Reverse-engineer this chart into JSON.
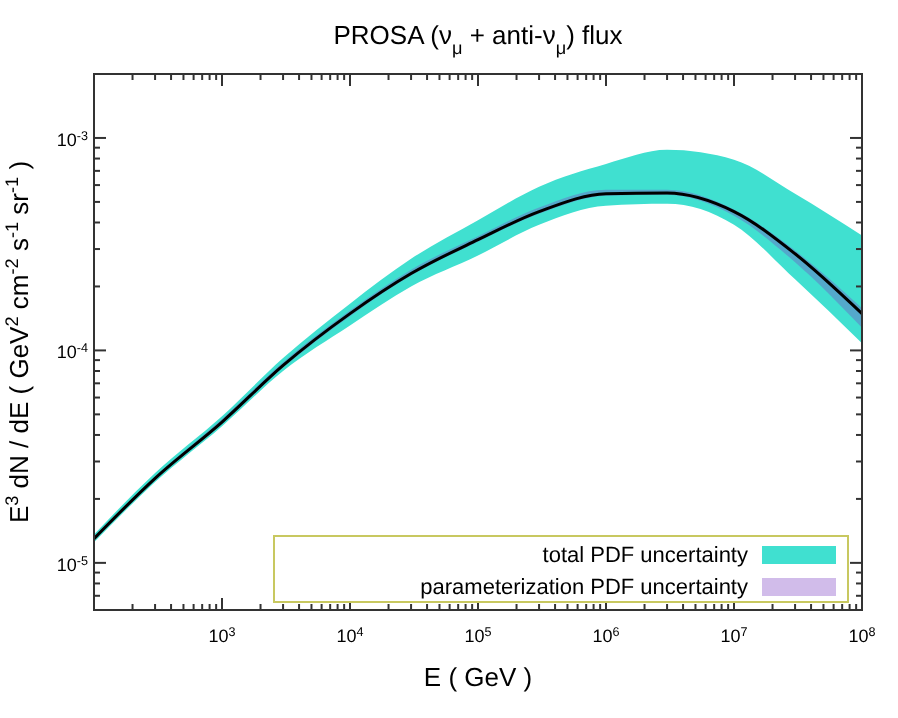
{
  "chart_data": {
    "type": "line",
    "title": "PROSA   (ν$_{μ}$ + anti-ν$_{μ}$)  flux",
    "xlabel": "E   ( GeV )",
    "ylabel": "E$^{3}$  dN / dE   ( GeV$^{2}$ cm$^{-2}$ s$^{-1}$ sr$^{-1}$ )",
    "log": "xy",
    "grid": false,
    "legend": "bottom right",
    "x": [
      100,
      300,
      1000,
      3000,
      10000,
      30000,
      100000,
      300000,
      1000000,
      3000000,
      10000000,
      30000000,
      100000000
    ],
    "xlim": [
      100,
      100000000
    ],
    "xticks": [
      {
        "value": 1000,
        "label": "10$^{3}$"
      },
      {
        "value": 10000,
        "label": "10$^{4}$"
      },
      {
        "value": 100000,
        "label": "10$^{5}$"
      },
      {
        "value": 1000000,
        "label": "10$^{6}$"
      },
      {
        "value": 10000000,
        "label": "10$^{7}$"
      },
      {
        "value": 100000000,
        "label": "10$^{8}$"
      },
      {
        "value": 200,
        "label": null
      },
      {
        "value": 300,
        "label": null
      },
      {
        "value": 400,
        "label": null
      },
      {
        "value": 500,
        "label": null
      },
      {
        "value": 600,
        "label": null
      },
      {
        "value": 700,
        "label": null
      },
      {
        "value": 800,
        "label": null
      },
      {
        "value": 900,
        "label": null
      },
      {
        "value": 2000,
        "label": null
      },
      {
        "value": 3000,
        "label": null
      },
      {
        "value": 4000,
        "label": null
      },
      {
        "value": 5000,
        "label": null
      },
      {
        "value": 6000,
        "label": null
      },
      {
        "value": 7000,
        "label": null
      },
      {
        "value": 8000,
        "label": null
      },
      {
        "value": 9000,
        "label": null
      },
      {
        "value": 20000,
        "label": null
      },
      {
        "value": 30000,
        "label": null
      },
      {
        "value": 40000,
        "label": null
      },
      {
        "value": 50000,
        "label": null
      },
      {
        "value": 60000,
        "label": null
      },
      {
        "value": 70000,
        "label": null
      },
      {
        "value": 80000,
        "label": null
      },
      {
        "value": 90000,
        "label": null
      },
      {
        "value": 200000,
        "label": null
      },
      {
        "value": 300000,
        "label": null
      },
      {
        "value": 400000,
        "label": null
      },
      {
        "value": 500000,
        "label": null
      },
      {
        "value": 600000,
        "label": null
      },
      {
        "value": 700000,
        "label": null
      },
      {
        "value": 800000,
        "label": null
      },
      {
        "value": 900000,
        "label": null
      },
      {
        "value": 2000000,
        "label": null
      },
      {
        "value": 3000000,
        "label": null
      },
      {
        "value": 4000000,
        "label": null
      },
      {
        "value": 5000000,
        "label": null
      },
      {
        "value": 6000000,
        "label": null
      },
      {
        "value": 7000000,
        "label": null
      },
      {
        "value": 8000000,
        "label": null
      },
      {
        "value": 9000000,
        "label": null
      },
      {
        "value": 20000000,
        "label": null
      },
      {
        "value": 30000000,
        "label": null
      },
      {
        "value": 40000000,
        "label": null
      },
      {
        "value": 50000000,
        "label": null
      },
      {
        "value": 60000000,
        "label": null
      },
      {
        "value": 70000000,
        "label": null
      },
      {
        "value": 80000000,
        "label": null
      },
      {
        "value": 90000000,
        "label": null
      }
    ],
    "ylim": [
      6e-06,
      0.002
    ],
    "yticks": [
      {
        "value": 1e-05,
        "label": "10$^{-5}$"
      },
      {
        "value": 0.0001,
        "label": "10$^{-4}$"
      },
      {
        "value": 0.001,
        "label": "10$^{-3}$"
      },
      {
        "value": 7e-06,
        "label": null
      },
      {
        "value": 8e-06,
        "label": null
      },
      {
        "value": 9e-06,
        "label": null
      },
      {
        "value": 2e-05,
        "label": null
      },
      {
        "value": 3e-05,
        "label": null
      },
      {
        "value": 4e-05,
        "label": null
      },
      {
        "value": 5e-05,
        "label": null
      },
      {
        "value": 6e-05,
        "label": null
      },
      {
        "value": 7e-05,
        "label": null
      },
      {
        "value": 8e-05,
        "label": null
      },
      {
        "value": 9e-05,
        "label": null
      },
      {
        "value": 0.0002,
        "label": null
      },
      {
        "value": 0.0003,
        "label": null
      },
      {
        "value": 0.0004,
        "label": null
      },
      {
        "value": 0.0005,
        "label": null
      },
      {
        "value": 0.0006,
        "label": null
      },
      {
        "value": 0.0007,
        "label": null
      },
      {
        "value": 0.0008,
        "label": null
      },
      {
        "value": 0.0009,
        "label": null
      },
      {
        "value": 0.002,
        "label": null
      }
    ],
    "series": [
      {
        "name": "total PDF uncertainty",
        "color": "#40e0d0",
        "values": [
          null,
          null,
          null,
          null,
          null,
          null,
          null,
          null,
          null,
          null,
          null,
          null,
          null
        ],
        "upper": [
          1.36e-05,
          2.65e-05,
          4.9e-05,
          9.2e-05,
          0.000166,
          0.00027,
          0.00041,
          0.00059,
          0.000755,
          0.00088,
          0.00079,
          0.000546,
          0.000347
        ],
        "lower": [
          1.25e-05,
          2.4e-05,
          4.4e-05,
          8e-05,
          0.000131,
          0.0002,
          0.00028,
          0.00039,
          0.00048,
          0.00049,
          0.00039,
          0.000216,
          0.000108
        ]
      },
      {
        "name": "parameterization PDF uncertainty",
        "color": "#7b3fc4",
        "values": [
          null,
          null,
          null,
          null,
          null,
          null,
          null,
          null,
          null,
          null,
          null,
          null,
          null
        ],
        "upper": [
          1.33e-05,
          2.55e-05,
          4.75e-05,
          8.8e-05,
          0.000154,
          0.00024,
          0.000345,
          0.00047,
          0.00057,
          0.00057,
          0.00046,
          0.000295,
          0.000158
        ],
        "lower": [
          1.28e-05,
          2.45e-05,
          4.5e-05,
          8.3e-05,
          0.000145,
          0.000225,
          0.000325,
          0.00044,
          0.000535,
          0.00054,
          0.00043,
          0.00026,
          0.000128
        ]
      },
      {
        "color": "#000000",
        "values": [
          1.3e-05,
          2.5e-05,
          4.6e-05,
          8.5e-05,
          0.000149,
          0.00023,
          0.000332,
          0.00045,
          0.000546,
          0.00055,
          0.00045,
          0.000285,
          0.000149
        ]
      }
    ]
  }
}
